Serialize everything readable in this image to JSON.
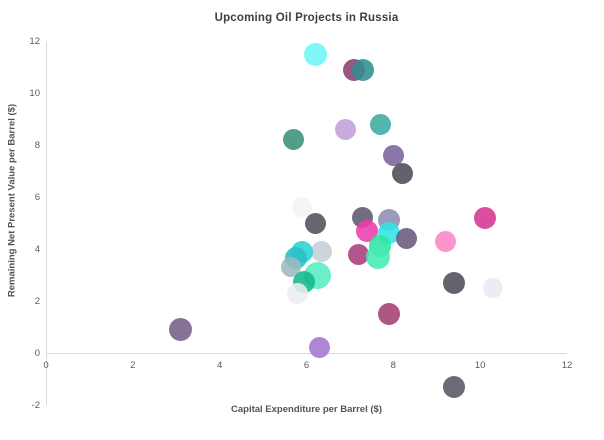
{
  "title": "Upcoming Oil Projects in Russia",
  "axis": {
    "x_title": "Capital Expenditure per Barrel ($)",
    "y_title": "Remaining Net Present Value per Barrel ($)"
  },
  "colors": {
    "axis_line": "#d9d9d9",
    "tick_text": "#595959",
    "title_text": "#3f3f3f"
  },
  "chart_data": {
    "type": "scatter",
    "title": "Upcoming Oil Projects in Russia",
    "xlabel": "Capital Expenditure per Barrel ($)",
    "ylabel": "Remaining Net Present Value per Barrel ($)",
    "xlim": [
      0,
      12
    ],
    "ylim": [
      -2,
      12
    ],
    "x_ticks": [
      0,
      2,
      4,
      6,
      8,
      10,
      12
    ],
    "y_ticks": [
      -2,
      0,
      2,
      4,
      6,
      8,
      10,
      12
    ],
    "grid": false,
    "legend_position": "none",
    "points": [
      {
        "x": 6.2,
        "y": 11.5,
        "r": 11.5,
        "color": "#6df6f6"
      },
      {
        "x": 7.1,
        "y": 10.9,
        "r": 11,
        "color": "#8b3f72"
      },
      {
        "x": 7.3,
        "y": 10.9,
        "r": 11,
        "color": "#2f9090"
      },
      {
        "x": 6.9,
        "y": 8.6,
        "r": 10.5,
        "color": "#c2a0d8"
      },
      {
        "x": 7.7,
        "y": 8.8,
        "r": 10.5,
        "color": "#3bab9f"
      },
      {
        "x": 5.7,
        "y": 8.2,
        "r": 10.5,
        "color": "#3a9178"
      },
      {
        "x": 8.0,
        "y": 7.6,
        "r": 10.5,
        "color": "#7b639c"
      },
      {
        "x": 8.2,
        "y": 6.9,
        "r": 10.5,
        "color": "#504b58"
      },
      {
        "x": 5.9,
        "y": 5.6,
        "r": 10,
        "color": "#f1f4f8"
      },
      {
        "x": 6.2,
        "y": 5.0,
        "r": 10.5,
        "color": "#544e5c"
      },
      {
        "x": 7.3,
        "y": 5.2,
        "r": 10.5,
        "color": "#5e5870"
      },
      {
        "x": 7.9,
        "y": 5.1,
        "r": 11,
        "color": "#8e8cb4"
      },
      {
        "x": 7.4,
        "y": 4.7,
        "r": 11,
        "color": "#ee3cac"
      },
      {
        "x": 7.9,
        "y": 4.6,
        "r": 11,
        "color": "#30e5e5"
      },
      {
        "x": 8.3,
        "y": 4.4,
        "r": 10.5,
        "color": "#69597c"
      },
      {
        "x": 10.1,
        "y": 5.2,
        "r": 11,
        "color": "#d53590"
      },
      {
        "x": 9.2,
        "y": 4.3,
        "r": 10.5,
        "color": "#fc85c6"
      },
      {
        "x": 7.7,
        "y": 4.1,
        "r": 11,
        "color": "#2be69d"
      },
      {
        "x": 7.2,
        "y": 3.8,
        "r": 10.5,
        "color": "#aa3c7c"
      },
      {
        "x": 7.65,
        "y": 3.7,
        "r": 12,
        "color": "#46eab3"
      },
      {
        "x": 6.35,
        "y": 3.9,
        "r": 10.5,
        "color": "#c7ced7"
      },
      {
        "x": 5.9,
        "y": 3.9,
        "r": 11,
        "color": "#25d3d3"
      },
      {
        "x": 5.75,
        "y": 3.65,
        "r": 11,
        "color": "#29bec4"
      },
      {
        "x": 5.65,
        "y": 3.3,
        "r": 10,
        "color": "#9cb9bd"
      },
      {
        "x": 6.25,
        "y": 3.0,
        "r": 13.5,
        "color": "#55edc1"
      },
      {
        "x": 5.95,
        "y": 2.75,
        "r": 11,
        "color": "#16b68b"
      },
      {
        "x": 5.8,
        "y": 2.3,
        "r": 10.5,
        "color": "#e9edf1"
      },
      {
        "x": 9.4,
        "y": 2.7,
        "r": 11,
        "color": "#524d58"
      },
      {
        "x": 10.3,
        "y": 2.5,
        "r": 10,
        "color": "#e7ecf2"
      },
      {
        "x": 7.9,
        "y": 1.5,
        "r": 11,
        "color": "#a33f73"
      },
      {
        "x": 6.3,
        "y": 0.2,
        "r": 10.5,
        "color": "#a673ce"
      },
      {
        "x": 3.1,
        "y": 0.9,
        "r": 11.5,
        "color": "#746086"
      },
      {
        "x": 9.4,
        "y": -1.3,
        "r": 11,
        "color": "#595463"
      }
    ]
  }
}
